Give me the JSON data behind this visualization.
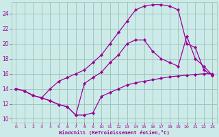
{
  "xlabel": "Windchill (Refroidissement éolien,°C)",
  "bg_color": "#cceae7",
  "grid_color": "#9bbfbc",
  "line_color": "#990099",
  "xlim": [
    -0.5,
    23.5
  ],
  "ylim": [
    9.5,
    25.5
  ],
  "xticks": [
    0,
    1,
    2,
    3,
    4,
    5,
    6,
    7,
    8,
    9,
    10,
    11,
    12,
    13,
    14,
    15,
    16,
    17,
    18,
    19,
    20,
    21,
    22,
    23
  ],
  "yticks": [
    10,
    12,
    14,
    16,
    18,
    20,
    22,
    24
  ],
  "line1_x": [
    0,
    1,
    2,
    3,
    4,
    5,
    6,
    7,
    8,
    9,
    10,
    11,
    12,
    13,
    14,
    15,
    16,
    17,
    18,
    19,
    20,
    21,
    22,
    23
  ],
  "line1_y": [
    14.0,
    13.7,
    13.1,
    12.8,
    12.4,
    11.9,
    11.6,
    10.5,
    10.5,
    10.8,
    13.0,
    13.5,
    14.0,
    14.5,
    14.8,
    15.0,
    15.2,
    15.4,
    15.6,
    15.7,
    15.8,
    15.9,
    16.0,
    16.0
  ],
  "line2_x": [
    0,
    1,
    2,
    3,
    4,
    5,
    6,
    7,
    8,
    9,
    10,
    11,
    12,
    13,
    14,
    15,
    16,
    17,
    18,
    19,
    20,
    21,
    22,
    23
  ],
  "line2_y": [
    14.0,
    13.7,
    13.1,
    12.8,
    12.4,
    11.9,
    11.6,
    10.5,
    14.7,
    15.5,
    16.2,
    17.5,
    18.5,
    20.0,
    20.5,
    20.5,
    19.0,
    18.0,
    17.5,
    17.0,
    21.0,
    18.0,
    17.0,
    15.8
  ],
  "line3_x": [
    0,
    1,
    2,
    3,
    4,
    5,
    6,
    7,
    8,
    9,
    10,
    11,
    12,
    13,
    14,
    15,
    16,
    17,
    18,
    19,
    20,
    21,
    22,
    23
  ],
  "line3_y": [
    14.0,
    13.7,
    13.1,
    12.8,
    14.0,
    15.0,
    15.5,
    16.0,
    16.5,
    17.5,
    18.5,
    20.0,
    21.5,
    23.0,
    24.5,
    25.0,
    25.2,
    25.2,
    25.0,
    24.5,
    20.0,
    19.5,
    16.5,
    15.8
  ]
}
